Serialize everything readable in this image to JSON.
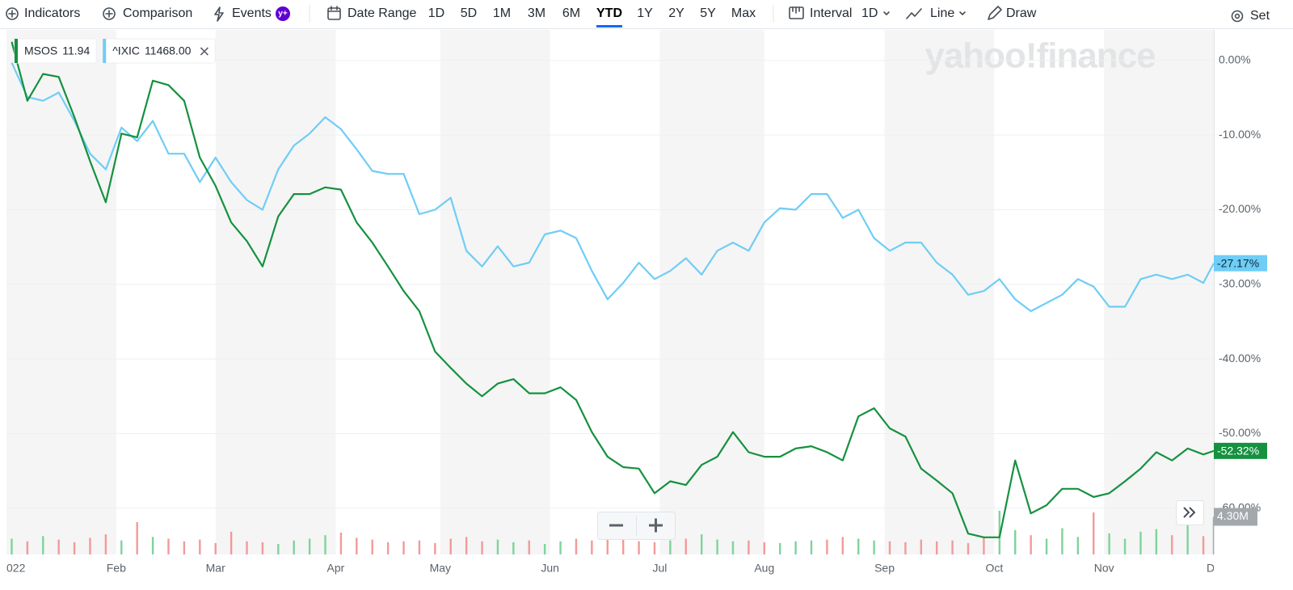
{
  "toolbar": {
    "indicators": "Indicators",
    "comparison": "Comparison",
    "events": "Events",
    "badge": "y+",
    "date_range": "Date Range",
    "ranges": [
      "1D",
      "5D",
      "1M",
      "3M",
      "6M",
      "YTD",
      "1Y",
      "2Y",
      "5Y",
      "Max"
    ],
    "interval": "Interval",
    "interval_value": "1D",
    "chart_style": "Line",
    "draw": "Draw",
    "settings": "Set"
  },
  "chart_data": {
    "type": "line",
    "watermark": "yahoo!finance",
    "x": [
      0,
      3,
      6,
      9,
      12,
      15,
      18,
      21,
      24,
      27,
      30,
      33,
      36,
      39,
      42,
      45,
      48,
      51,
      54,
      57,
      60,
      63,
      66,
      69,
      72,
      75,
      78,
      81,
      84,
      87,
      90,
      93,
      96,
      99,
      102,
      105,
      108,
      111,
      114,
      117,
      120,
      123,
      126,
      129,
      132,
      135,
      138,
      141,
      144,
      147,
      150,
      153,
      156,
      159,
      162,
      165,
      168,
      171,
      174,
      177,
      180,
      183,
      186,
      189,
      192,
      195,
      198,
      201,
      204,
      207,
      210,
      213,
      216,
      219,
      222,
      225,
      228,
      230
    ],
    "xlim": [
      -1,
      230
    ],
    "xticks": [
      {
        "value": -1,
        "label": "022"
      },
      {
        "value": 20,
        "label": "Feb"
      },
      {
        "value": 39,
        "label": "Mar"
      },
      {
        "value": 62,
        "label": "Apr"
      },
      {
        "value": 82,
        "label": "May"
      },
      {
        "value": 103,
        "label": "Jun"
      },
      {
        "value": 124,
        "label": "Jul"
      },
      {
        "value": 144,
        "label": "Aug"
      },
      {
        "value": 167,
        "label": "Sep"
      },
      {
        "value": 188,
        "label": "Oct"
      },
      {
        "value": 209,
        "label": "Nov"
      },
      {
        "value": 230,
        "label": "De"
      }
    ],
    "ylim": [
      -66.2,
      4.1
    ],
    "yticks": [
      {
        "value": 0,
        "label": "0.00%"
      },
      {
        "value": -10,
        "label": "-10.00%"
      },
      {
        "value": -20,
        "label": "-20.00%"
      },
      {
        "value": -30,
        "label": "-30.00%"
      },
      {
        "value": -40,
        "label": "-40.00%"
      },
      {
        "value": -50,
        "label": "-50.00%"
      },
      {
        "value": -60,
        "label": "-60.00%"
      }
    ],
    "grid": true,
    "series": [
      {
        "name": "MSOS",
        "quote": "11.94",
        "color": "#15913f",
        "end_label": "-52.32%",
        "values": [
          2.5,
          -5.4,
          -1.8,
          -2.2,
          -7.6,
          -13.5,
          -19,
          -9.8,
          -10.3,
          -2.7,
          -3.3,
          -5.4,
          -13,
          -16.8,
          -21.7,
          -24.2,
          -27.6,
          -20.9,
          -17.9,
          -17.9,
          -17,
          -17.3,
          -21.7,
          -24.4,
          -27.6,
          -30.9,
          -33.6,
          -39,
          -41.2,
          -43.3,
          -45,
          -43.3,
          -42.7,
          -44.6,
          -44.6,
          -43.8,
          -45.5,
          -49.8,
          -53.1,
          -54.5,
          -54.7,
          -58,
          -56.4,
          -56.9,
          -54.2,
          -53.1,
          -49.8,
          -52.5,
          -53.1,
          -53.1,
          -52,
          -51.7,
          -52.5,
          -53.6,
          -47.7,
          -46.6,
          -49.3,
          -50.4,
          -54.7,
          -56.3,
          -58,
          -63.4,
          -63.9,
          -63.9,
          -53.6,
          -60.7,
          -59.6,
          -57.4,
          -57.4,
          -58.5,
          -58,
          -56.4,
          -54.7,
          -52.5,
          -53.6,
          -52,
          -52.8,
          -52.32
        ]
      },
      {
        "name": "^IXIC",
        "quote": "11468.00",
        "color": "#6fcdf6",
        "end_label": "-27.17%",
        "values": [
          -0.3,
          -4.9,
          -5.4,
          -4.3,
          -8.1,
          -12.5,
          -14.6,
          -9,
          -10.8,
          -8.1,
          -12.5,
          -12.5,
          -16.3,
          -13,
          -16.3,
          -18.7,
          -20,
          -14.6,
          -11.4,
          -9.8,
          -7.6,
          -9.2,
          -11.9,
          -14.8,
          -15.2,
          -15.2,
          -20.6,
          -20,
          -18.4,
          -25.5,
          -27.6,
          -24.9,
          -27.6,
          -27.1,
          -23.3,
          -22.8,
          -23.8,
          -28.2,
          -32,
          -29.8,
          -27.1,
          -29.3,
          -28.2,
          -26.5,
          -28.7,
          -25.5,
          -24.4,
          -25.5,
          -21.7,
          -19.8,
          -20,
          -17.9,
          -17.9,
          -21.1,
          -20,
          -23.8,
          -25.5,
          -24.4,
          -24.4,
          -27.1,
          -28.7,
          -31.4,
          -30.9,
          -29.3,
          -32,
          -33.6,
          -32.5,
          -31.4,
          -29.3,
          -30.3,
          -33,
          -33,
          -29.3,
          -28.7,
          -29.3,
          -28.7,
          -29.8,
          -27.17
        ]
      }
    ],
    "y2lim": [
      0,
      60000000
    ],
    "volume": {
      "label": "4.30M",
      "up_color": "#7fd39b",
      "down_color": "#f29a9a",
      "last_color": "#a3a8ad",
      "values": [
        1800000,
        1500000,
        2100000,
        1700000,
        1400000,
        1900000,
        2300000,
        1600000,
        3700000,
        2000000,
        1800000,
        1500000,
        1700000,
        1300000,
        2600000,
        1500000,
        1400000,
        1200000,
        1600000,
        1800000,
        2200000,
        2500000,
        1900000,
        1700000,
        1400000,
        1500000,
        1600000,
        1300000,
        1800000,
        2000000,
        1500000,
        1700000,
        1400000,
        1600000,
        1200000,
        1500000,
        1800000,
        1600000,
        1700000,
        1900000,
        1500000,
        1400000,
        1600000,
        1800000,
        2300000,
        1700000,
        1500000,
        1600000,
        1400000,
        1300000,
        1500000,
        1600000,
        1700000,
        2000000,
        1800000,
        1600000,
        1500000,
        1400000,
        1700000,
        1500000,
        1600000,
        1300000,
        1900000,
        5000000,
        2800000,
        2200000,
        1800000,
        3000000,
        2000000,
        4800000,
        2400000,
        1800000,
        2600000,
        2900000,
        2200000,
        3600000,
        2100000,
        4300000
      ]
    }
  }
}
